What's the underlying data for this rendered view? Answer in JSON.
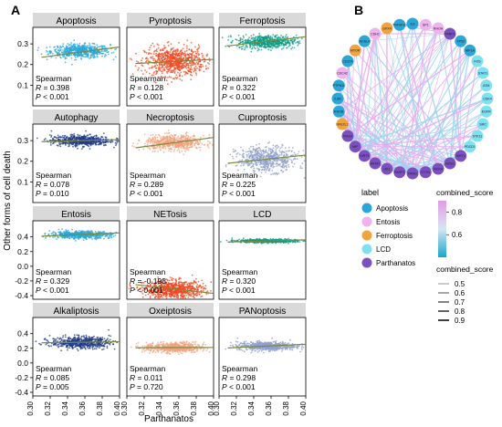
{
  "figure": {
    "panel_a_letter": "A",
    "panel_b_letter": "B",
    "shared_x_label": "Parthanatos",
    "shared_y_label": "Other forms of cell death",
    "x_ticks": [
      "0.30",
      "0.32",
      "0.34",
      "0.36",
      "0.38",
      "0.40"
    ]
  },
  "chart_data": [
    {
      "type": "scatter",
      "layout": "4x3 facet grid",
      "x_variable": "Parthanatos",
      "xlim": [
        0.3,
        0.4
      ],
      "method": "Spearman",
      "panels": [
        {
          "title": "Apoptosis",
          "R": "0.398",
          "P": "< 0.001",
          "color": "#2aa7d8",
          "ylim": [
            0.0,
            0.38
          ],
          "y_ticks": [
            0.1,
            0.2,
            0.3
          ],
          "points_center": [
            0.355,
            0.265
          ],
          "spread": [
            0.017,
            0.016
          ],
          "trend": [
            [
              0.31,
              0.235
            ],
            [
              0.4,
              0.285
            ]
          ],
          "n": 600
        },
        {
          "title": "Pyroptosis",
          "R": "0.128",
          "P": "< 0.001",
          "color": "#ef4a23",
          "ylim": [
            0.0,
            0.38
          ],
          "y_ticks": [
            0.1,
            0.2,
            0.3
          ],
          "points_center": [
            0.355,
            0.215
          ],
          "spread": [
            0.017,
            0.035
          ],
          "trend": [
            [
              0.31,
              0.205
            ],
            [
              0.4,
              0.225
            ]
          ],
          "n": 800
        },
        {
          "title": "Ferroptosis",
          "R": "0.322",
          "P": "< 0.001",
          "color": "#0e9a83",
          "ylim": [
            0.0,
            0.38
          ],
          "y_ticks": [
            0.1,
            0.2,
            0.3
          ],
          "points_center": [
            0.355,
            0.31
          ],
          "spread": [
            0.017,
            0.016
          ],
          "trend": [
            [
              0.31,
              0.29
            ],
            [
              0.4,
              0.335
            ]
          ],
          "n": 600
        },
        {
          "title": "Autophagy",
          "R": "0.078",
          "P": "0.010",
          "color": "#1f3a8a",
          "ylim": [
            0.0,
            0.38
          ],
          "y_ticks": [
            0.1,
            0.2,
            0.3
          ],
          "points_center": [
            0.355,
            0.3
          ],
          "spread": [
            0.017,
            0.013
          ],
          "trend": [
            [
              0.31,
              0.295
            ],
            [
              0.4,
              0.305
            ]
          ],
          "n": 600
        },
        {
          "title": "Necroptosis",
          "R": "0.289",
          "P": "< 0.001",
          "color": "#f3a27d",
          "ylim": [
            0.0,
            0.38
          ],
          "y_ticks": [
            0.1,
            0.2,
            0.3
          ],
          "points_center": [
            0.355,
            0.29
          ],
          "spread": [
            0.017,
            0.018
          ],
          "trend": [
            [
              0.31,
              0.265
            ],
            [
              0.4,
              0.315
            ]
          ],
          "n": 600
        },
        {
          "title": "Cuproptosis",
          "R": "0.225",
          "P": "< 0.001",
          "color": "#8f9ec9",
          "ylim": [
            0.0,
            0.38
          ],
          "y_ticks": [
            0.1,
            0.2,
            0.3
          ],
          "points_center": [
            0.355,
            0.21
          ],
          "spread": [
            0.017,
            0.03
          ],
          "trend": [
            [
              0.31,
              0.19
            ],
            [
              0.4,
              0.23
            ]
          ],
          "n": 600
        },
        {
          "title": "Entosis",
          "R": "0.329",
          "P": "< 0.001",
          "color": "#2aa7d8",
          "ylim": [
            -0.45,
            0.62
          ],
          "y_ticks": [
            -0.4,
            -0.2,
            0.0,
            0.2,
            0.4
          ],
          "points_center": [
            0.355,
            0.43
          ],
          "spread": [
            0.017,
            0.025
          ],
          "trend": [
            [
              0.31,
              0.41
            ],
            [
              0.4,
              0.455
            ]
          ],
          "n": 600
        },
        {
          "title": "NETosis",
          "R": "-0.198",
          "P": "< 0.001",
          "color": "#ef4a23",
          "ylim": [
            -0.45,
            0.62
          ],
          "y_ticks": [
            -0.4,
            -0.2,
            0.0,
            0.2,
            0.4
          ],
          "points_center": [
            0.355,
            -0.32
          ],
          "spread": [
            0.017,
            0.06
          ],
          "trend": [
            [
              0.31,
              -0.25
            ],
            [
              0.4,
              -0.37
            ]
          ],
          "n": 800
        },
        {
          "title": "LCD",
          "R": "0.320",
          "P": "< 0.001",
          "color": "#0e9a83",
          "ylim": [
            -0.45,
            0.62
          ],
          "y_ticks": [
            -0.4,
            -0.2,
            0.0,
            0.2,
            0.4
          ],
          "points_center": [
            0.355,
            0.345
          ],
          "spread": [
            0.017,
            0.012
          ],
          "trend": [
            [
              0.31,
              0.33
            ],
            [
              0.4,
              0.36
            ]
          ],
          "n": 600
        },
        {
          "title": "Alkaliptosis",
          "R": "0.085",
          "P": "0.005",
          "color": "#1f3a8a",
          "ylim": [
            -0.45,
            0.62
          ],
          "y_ticks": [
            -0.4,
            -0.2,
            0.0,
            0.2,
            0.4
          ],
          "points_center": [
            0.355,
            0.28
          ],
          "spread": [
            0.017,
            0.04
          ],
          "trend": [
            [
              0.31,
              0.275
            ],
            [
              0.4,
              0.29
            ]
          ],
          "n": 600
        },
        {
          "title": "Oxeiptosis",
          "R": "0.011",
          "P": "0.720",
          "color": "#f3a27d",
          "ylim": [
            -0.45,
            0.62
          ],
          "y_ticks": [
            -0.4,
            -0.2,
            0.0,
            0.2,
            0.4
          ],
          "points_center": [
            0.355,
            0.21
          ],
          "spread": [
            0.017,
            0.035
          ],
          "trend": [
            [
              0.31,
              0.208
            ],
            [
              0.4,
              0.212
            ]
          ],
          "n": 600
        },
        {
          "title": "PANoptosis",
          "R": "0.298",
          "P": "< 0.001",
          "color": "#8f9ec9",
          "ylim": [
            -0.45,
            0.62
          ],
          "y_ticks": [
            -0.4,
            -0.2,
            0.0,
            0.2,
            0.4
          ],
          "points_center": [
            0.355,
            0.23
          ],
          "spread": [
            0.017,
            0.03
          ],
          "trend": [
            [
              0.31,
              0.205
            ],
            [
              0.4,
              0.255
            ]
          ],
          "n": 600
        }
      ]
    },
    {
      "type": "network",
      "layout": "circular",
      "nodes": [
        {
          "id": "IL6",
          "label": "Apoptosis"
        },
        {
          "id": "SP1",
          "label": "Entosis"
        },
        {
          "id": "RHOA",
          "label": "Entosis"
        },
        {
          "id": "PARP1",
          "label": "Parthanatos"
        },
        {
          "id": "TP53",
          "label": "Apoptosis"
        },
        {
          "id": "HIF1A",
          "label": "Apoptosis"
        },
        {
          "id": "FOS",
          "label": "LCD"
        },
        {
          "id": "STAT1",
          "label": "LCD"
        },
        {
          "id": "ATM",
          "label": "LCD"
        },
        {
          "id": "CDK4",
          "label": "LCD"
        },
        {
          "id": "EGFR",
          "label": "LCD"
        },
        {
          "id": "SRC",
          "label": "LCD"
        },
        {
          "id": "STK11",
          "label": "LCD"
        },
        {
          "id": "PDCD1",
          "label": "LCD"
        },
        {
          "id": "SIRT1",
          "label": "Parthanatos"
        },
        {
          "id": "NOS1",
          "label": "Parthanatos"
        },
        {
          "id": "NOX4",
          "label": "Parthanatos"
        },
        {
          "id": "CTTN",
          "label": "Parthanatos"
        },
        {
          "id": "PARG",
          "label": "Parthanatos"
        },
        {
          "id": "PARP2",
          "label": "Parthanatos"
        },
        {
          "id": "HK1",
          "label": "Parthanatos"
        },
        {
          "id": "AIFM1",
          "label": "Parthanatos"
        },
        {
          "id": "SIRT3",
          "label": "Parthanatos"
        },
        {
          "id": "MIF",
          "label": "Parthanatos"
        },
        {
          "id": "PIAS4",
          "label": "Parthanatos"
        },
        {
          "id": "NFE2L2",
          "label": "Ferroptosis"
        },
        {
          "id": "RHOB",
          "label": "Apoptosis"
        },
        {
          "id": "IL6R",
          "label": "Apoptosis"
        },
        {
          "id": "PTPN11",
          "label": "Apoptosis"
        },
        {
          "id": "CDC42",
          "label": "Entosis"
        },
        {
          "id": "CD274",
          "label": "Apoptosis"
        },
        {
          "id": "MTOR",
          "label": "Ferroptosis"
        },
        {
          "id": "ACSL4",
          "label": "Apoptosis"
        },
        {
          "id": "CDH1",
          "label": "Entosis"
        },
        {
          "id": "GPX4",
          "label": "Ferroptosis"
        },
        {
          "id": "TNFSF10",
          "label": "Apoptosis"
        }
      ],
      "legend_label": {
        "title": "label",
        "items": [
          {
            "name": "Apoptosis",
            "color": "#2aa7d8"
          },
          {
            "name": "Entosis",
            "color": "#f0b3ef"
          },
          {
            "name": "Ferroptosis",
            "color": "#f1a33c"
          },
          {
            "name": "LCD",
            "color": "#7fe0f2"
          },
          {
            "name": "Parthanatos",
            "color": "#7b4fc0"
          }
        ]
      },
      "legend_score_color": {
        "title": "combined_score",
        "ticks": [
          "0.8",
          "0.6"
        ],
        "range": [
          0.4,
          0.9
        ]
      },
      "legend_score_width": {
        "title": "combined_score",
        "ticks": [
          "0.5",
          "0.6",
          "0.7",
          "0.8",
          "0.9"
        ]
      }
    }
  ],
  "colors": {
    "strip_bg": "#d9d9d9",
    "panel_bg": "#ffffff",
    "axis": "#000000",
    "edge_low": "#9ed4ec",
    "edge_high": "#e7a8ee"
  }
}
